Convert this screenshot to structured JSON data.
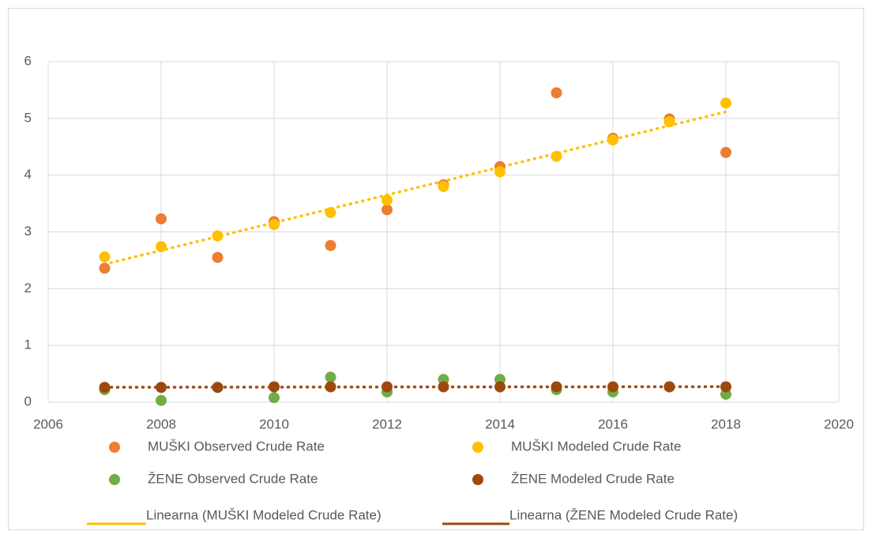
{
  "chart_data": {
    "type": "scatter",
    "x": [
      2007,
      2008,
      2009,
      2010,
      2011,
      2012,
      2013,
      2014,
      2015,
      2016,
      2017,
      2018
    ],
    "series": [
      {
        "name": "MUŠKI Observed Crude Rate",
        "color": "#ED7D31",
        "values": [
          2.36,
          3.23,
          2.55,
          3.18,
          2.76,
          3.39,
          3.83,
          4.15,
          5.45,
          4.65,
          4.99,
          4.4
        ]
      },
      {
        "name": "MUŠKI Modeled Crude Rate",
        "color": "#FFC000",
        "values": [
          2.56,
          2.74,
          2.93,
          3.13,
          3.34,
          3.56,
          3.8,
          4.06,
          4.33,
          4.62,
          4.94,
          5.27
        ]
      },
      {
        "name": "ŽENE Observed Crude Rate",
        "color": "#70AD47",
        "values": [
          0.22,
          0.03,
          0.26,
          0.08,
          0.44,
          0.18,
          0.4,
          0.4,
          0.22,
          0.18,
          0.27,
          0.14
        ]
      },
      {
        "name": "ŽENE Modeled Crude Rate",
        "color": "#9E480E",
        "values": [
          0.26,
          0.26,
          0.26,
          0.27,
          0.27,
          0.27,
          0.27,
          0.27,
          0.27,
          0.27,
          0.27,
          0.27
        ]
      }
    ],
    "trendlines": [
      {
        "name": "Linearna (MUŠKI Modeled Crude Rate)",
        "color": "#FFC000",
        "series": 1
      },
      {
        "name": "Linearna (ŽENE Modeled Crude Rate)",
        "color": "#9E480E",
        "series": 3
      }
    ],
    "xlim": [
      2006,
      2020
    ],
    "xticks": [
      2006,
      2008,
      2010,
      2012,
      2014,
      2016,
      2018,
      2020
    ],
    "ylim": [
      0,
      6
    ],
    "yticks": [
      0,
      1,
      2,
      3,
      4,
      5,
      6
    ],
    "grid": true,
    "legend": "bottom"
  }
}
